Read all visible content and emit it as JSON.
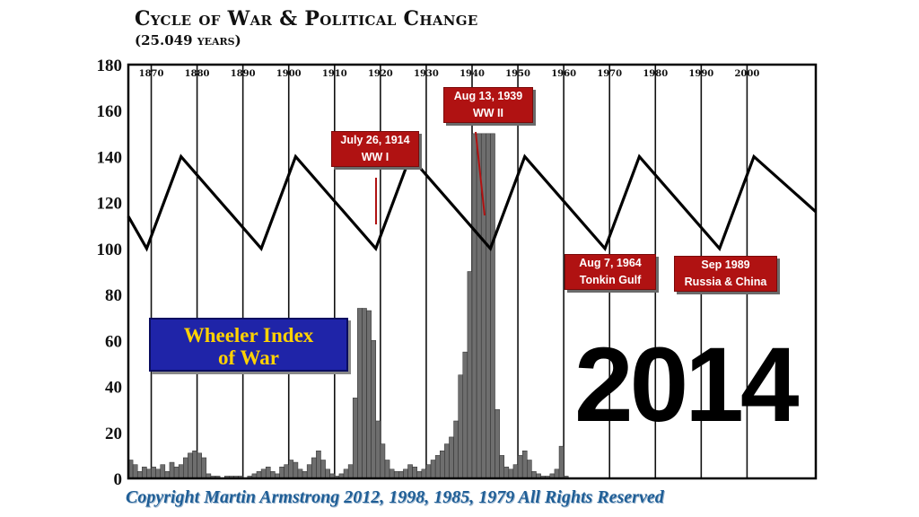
{
  "chart_data": {
    "type": "line",
    "title": "Cycle of War & Political Change",
    "subtitle": "(25.049 years)",
    "ylim": [
      0,
      180
    ],
    "xlim": [
      1865,
      2015
    ],
    "y_ticks": [
      "0",
      "20",
      "40",
      "60",
      "80",
      "100",
      "120",
      "140",
      "160",
      "180"
    ],
    "x_ticks": [
      "1870",
      "1880",
      "1890",
      "1900",
      "1910",
      "1920",
      "1930",
      "1940",
      "1950",
      "1960",
      "1970",
      "1980",
      "1990",
      "2000"
    ],
    "grid": "vertical",
    "cycle": {
      "x": [
        1865.0,
        1869.0,
        1876.5,
        1894.0,
        1901.5,
        1919.0,
        1926.5,
        1944.0,
        1951.5,
        1969.0,
        1976.5,
        1994.0,
        2001.5,
        2015.0
      ],
      "y": [
        114,
        100,
        140,
        100,
        140,
        100,
        140,
        100,
        140,
        100,
        140,
        100,
        140,
        116
      ]
    },
    "wheeler_index": {
      "x": [
        1865,
        1866,
        1867,
        1868,
        1869,
        1870,
        1871,
        1872,
        1873,
        1874,
        1875,
        1876,
        1877,
        1878,
        1879,
        1880,
        1881,
        1882,
        1883,
        1884,
        1885,
        1886,
        1887,
        1888,
        1889,
        1890,
        1891,
        1892,
        1893,
        1894,
        1895,
        1896,
        1897,
        1898,
        1899,
        1900,
        1901,
        1902,
        1903,
        1904,
        1905,
        1906,
        1907,
        1908,
        1909,
        1910,
        1911,
        1912,
        1913,
        1914,
        1915,
        1916,
        1917,
        1918,
        1919,
        1920,
        1921,
        1922,
        1923,
        1924,
        1925,
        1926,
        1927,
        1928,
        1929,
        1930,
        1931,
        1932,
        1933,
        1934,
        1935,
        1936,
        1937,
        1938,
        1939,
        1940,
        1941,
        1942,
        1943,
        1944,
        1945,
        1946,
        1947,
        1948,
        1949,
        1950,
        1951,
        1952,
        1953,
        1954,
        1955,
        1956,
        1957,
        1958,
        1959,
        1960
      ],
      "y": [
        8,
        6,
        3,
        5,
        4,
        5,
        4,
        6,
        3,
        7,
        5,
        6,
        9,
        11,
        12,
        11,
        9,
        2,
        1,
        1,
        0,
        1,
        1,
        1,
        1,
        0,
        1,
        2,
        3,
        4,
        5,
        3,
        2,
        5,
        6,
        8,
        7,
        4,
        3,
        6,
        9,
        12,
        8,
        4,
        2,
        1,
        2,
        4,
        6,
        35,
        74,
        74,
        73,
        60,
        25,
        15,
        8,
        4,
        3,
        3,
        4,
        6,
        5,
        3,
        4,
        6,
        8,
        10,
        12,
        15,
        18,
        25,
        45,
        55,
        90,
        150,
        150,
        150,
        150,
        150,
        30,
        10,
        5,
        4,
        6,
        10,
        12,
        8,
        3,
        2,
        1,
        1,
        2,
        4,
        14,
        1
      ]
    }
  },
  "annotations": [
    {
      "line1": "July 26, 1914",
      "line2": "WW I"
    },
    {
      "line1": "Aug 13, 1939",
      "line2": "WW II"
    },
    {
      "line1": "Aug 7, 1964",
      "line2": "Tonkin Gulf"
    },
    {
      "line1": "Sep 1989",
      "line2": "Russia & China"
    }
  ],
  "legend": {
    "line1": "Wheeler Index",
    "line2": "of War"
  },
  "big_year": "2014",
  "copyright": "Copyright Martin Armstrong 2012, 1998, 1985, 1979 All Rights Reserved",
  "colors": {
    "annotation": "#b01212",
    "legend_bg": "#1f24a8",
    "legend_text": "#ffd200",
    "copyright": "#1f5e96",
    "bars": "#6e6e6e"
  }
}
